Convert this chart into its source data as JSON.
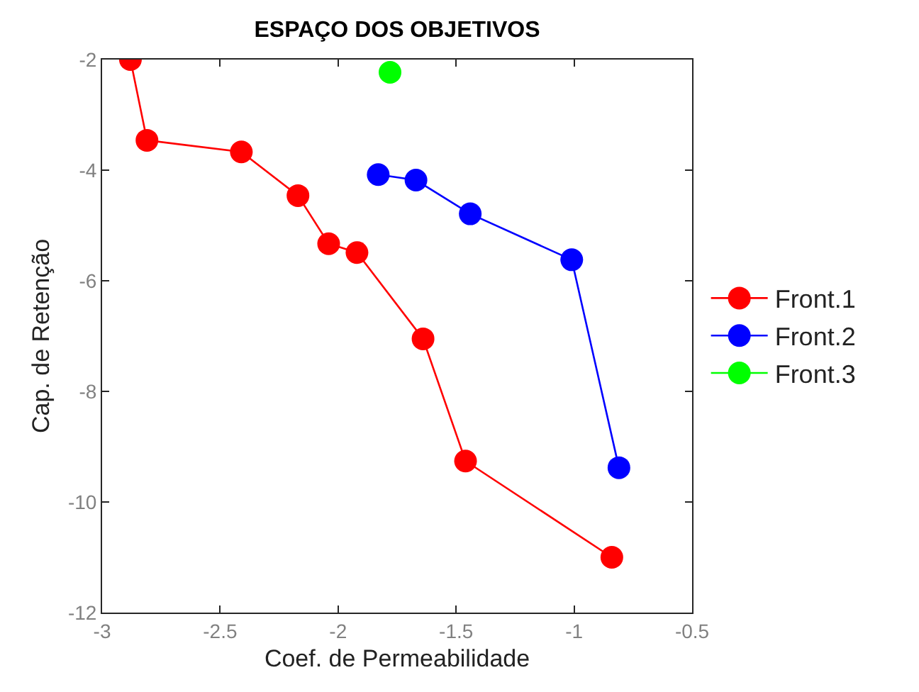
{
  "chart_data": {
    "type": "line",
    "title": "ESPAÇO DOS OBJETIVOS",
    "xlabel": "Coef. de Permeabilidade",
    "ylabel": "Cap. de Retenção",
    "series": [
      {
        "name": "Front.1",
        "color": "#ff0000",
        "x": [
          -2.88,
          -2.81,
          -2.41,
          -2.17,
          -2.04,
          -1.92,
          -1.64,
          -1.46,
          -0.84
        ],
        "values": [
          -2.0,
          -3.46,
          -3.67,
          -4.46,
          -5.33,
          -5.49,
          -7.05,
          -9.26,
          -11.0
        ]
      },
      {
        "name": "Front.2",
        "color": "#0000ff",
        "x": [
          -1.83,
          -1.67,
          -1.44,
          -1.01,
          -0.81
        ],
        "values": [
          -4.08,
          -4.18,
          -4.79,
          -5.62,
          -9.38
        ]
      },
      {
        "name": "Front.3",
        "color": "#00ff00",
        "x": [
          -1.78
        ],
        "values": [
          -2.23
        ]
      }
    ],
    "xlim": [
      -3,
      -0.5
    ],
    "xticks": [
      -3,
      -2.5,
      -2,
      -1.5,
      -1,
      -0.5
    ],
    "ylim": [
      -12,
      -2
    ],
    "yticks": [
      -12,
      -10,
      -8,
      -6,
      -4,
      -2
    ],
    "grid": false,
    "legend": "right",
    "marker": "circle",
    "line_style": "solid"
  }
}
